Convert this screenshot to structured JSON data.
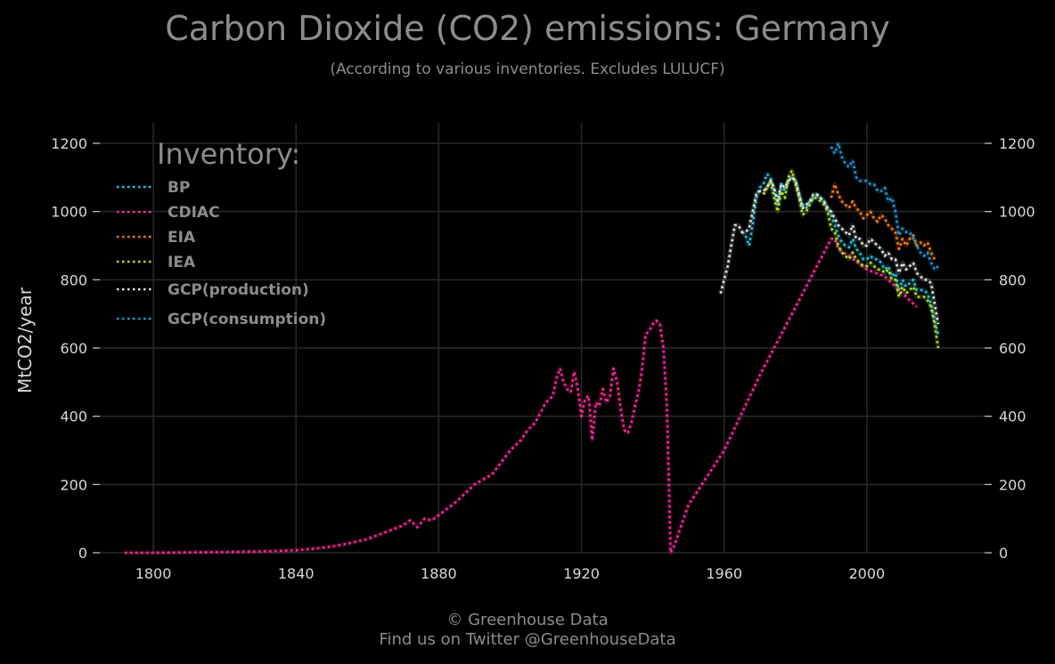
{
  "header": {
    "title": "Carbon Dioxide (CO2) emissions: Germany",
    "subtitle": "(According to various inventories. Excludes LULUCF)"
  },
  "footer": {
    "line1": "© Greenhouse Data",
    "line2": "Find us on Twitter @GreenhouseData"
  },
  "chart_data": {
    "type": "line",
    "ylabel": "MtCO2/year",
    "xlabel": "",
    "xlim": [
      1785,
      2033
    ],
    "ylim": [
      0,
      1260
    ],
    "xticks": [
      1800,
      1840,
      1880,
      1920,
      1960,
      2000
    ],
    "yticks": [
      0,
      200,
      400,
      600,
      800,
      1000,
      1200
    ],
    "grid": true,
    "line_style": "dotted",
    "legend": {
      "title": "Inventory:",
      "placement": "top-left"
    },
    "series": [
      {
        "name": "BP",
        "color": "#1ec8e6",
        "x": [
          1965,
          1966,
          1967,
          1968,
          1969,
          1970,
          1971,
          1972,
          1973,
          1974,
          1975,
          1976,
          1977,
          1978,
          1979,
          1980,
          1981,
          1982,
          1983,
          1984,
          1985,
          1986,
          1987,
          1988,
          1989,
          1990,
          1991,
          1992,
          1993,
          1994,
          1995,
          1996,
          1997,
          1998,
          1999,
          2000,
          2001,
          2002,
          2003,
          2004,
          2005,
          2006,
          2007,
          2008,
          2009,
          2010,
          2011,
          2012,
          2013,
          2014,
          2015,
          2016,
          2017,
          2018,
          2019,
          2020
        ],
        "y": [
          940,
          930,
          900,
          960,
          1040,
          1070,
          1080,
          1110,
          1100,
          1060,
          1020,
          1080,
          1060,
          1090,
          1100,
          1090,
          1050,
          1020,
          1010,
          1030,
          1040,
          1050,
          1040,
          1030,
          1010,
          990,
          960,
          930,
          910,
          900,
          895,
          920,
          890,
          880,
          860,
          860,
          870,
          860,
          860,
          850,
          830,
          840,
          810,
          820,
          770,
          800,
          780,
          790,
          800,
          770,
          770,
          770,
          760,
          730,
          680,
          640
        ]
      },
      {
        "name": "CDIAC",
        "color": "#ff2d96",
        "x": [
          1792,
          1800,
          1810,
          1820,
          1830,
          1840,
          1845,
          1850,
          1855,
          1860,
          1865,
          1870,
          1872,
          1874,
          1876,
          1878,
          1880,
          1885,
          1890,
          1895,
          1900,
          1903,
          1905,
          1907,
          1910,
          1912,
          1913,
          1914,
          1915,
          1916,
          1917,
          1918,
          1919,
          1920,
          1921,
          1922,
          1923,
          1924,
          1925,
          1926,
          1927,
          1928,
          1929,
          1930,
          1931,
          1932,
          1933,
          1934,
          1935,
          1936,
          1937,
          1938,
          1939,
          1940,
          1941,
          1942,
          1943,
          1944,
          1945,
          1946,
          1950,
          1960,
          1970,
          1980,
          1990,
          1991,
          1992,
          1995,
          2000,
          2005,
          2010,
          2012,
          2014
        ],
        "y": [
          0,
          0,
          1,
          2,
          4,
          7,
          12,
          18,
          28,
          40,
          60,
          80,
          95,
          75,
          100,
          95,
          110,
          150,
          200,
          230,
          300,
          330,
          360,
          380,
          440,
          460,
          510,
          540,
          500,
          480,
          470,
          530,
          480,
          400,
          450,
          460,
          330,
          440,
          430,
          480,
          440,
          460,
          540,
          500,
          420,
          360,
          350,
          380,
          430,
          470,
          540,
          640,
          650,
          670,
          680,
          670,
          600,
          420,
          0,
          20,
          140,
          300,
          520,
          720,
          920,
          920,
          890,
          870,
          830,
          810,
          760,
          740,
          720
        ]
      },
      {
        "name": "EIA",
        "color": "#ff7f0e",
        "x": [
          1990,
          1991,
          1992,
          1993,
          1994,
          1995,
          1996,
          1997,
          1998,
          1999,
          2000,
          2001,
          2002,
          2003,
          2004,
          2005,
          2006,
          2007,
          2008,
          2009,
          2010,
          2011,
          2012,
          2013,
          2014,
          2015,
          2016,
          2017,
          2018,
          2019
        ],
        "y": [
          1040,
          1080,
          1050,
          1030,
          1020,
          1010,
          1030,
          1010,
          1000,
          980,
          990,
          1000,
          980,
          970,
          990,
          980,
          960,
          950,
          940,
          890,
          920,
          900,
          920,
          930,
          900,
          910,
          900,
          910,
          880,
          860
        ]
      },
      {
        "name": "IEA",
        "color": "#b5e61d",
        "x": [
          1971,
          1972,
          1973,
          1974,
          1975,
          1976,
          1977,
          1978,
          1979,
          1980,
          1981,
          1982,
          1983,
          1984,
          1985,
          1986,
          1987,
          1988,
          1989,
          1990,
          1991,
          1992,
          1993,
          1994,
          1995,
          1996,
          1997,
          1998,
          1999,
          2000,
          2001,
          2002,
          2003,
          2004,
          2005,
          2006,
          2007,
          2008,
          2009,
          2010,
          2011,
          2012,
          2013,
          2014,
          2015,
          2016,
          2017,
          2018,
          2019,
          2020
        ],
        "y": [
          1050,
          1070,
          1090,
          1040,
          1000,
          1060,
          1040,
          1100,
          1120,
          1080,
          1040,
          990,
          1000,
          1020,
          1040,
          1040,
          1030,
          1020,
          1000,
          950,
          940,
          900,
          880,
          870,
          860,
          880,
          860,
          850,
          840,
          840,
          850,
          840,
          830,
          830,
          820,
          830,
          800,
          800,
          750,
          780,
          760,
          770,
          780,
          750,
          750,
          750,
          740,
          720,
          670,
          600
        ]
      },
      {
        "name": "GCP(production)",
        "color": "#e6e6e6",
        "x": [
          1959,
          1960,
          1961,
          1962,
          1963,
          1964,
          1965,
          1966,
          1967,
          1968,
          1969,
          1970,
          1971,
          1972,
          1973,
          1974,
          1975,
          1976,
          1977,
          1978,
          1979,
          1980,
          1981,
          1982,
          1983,
          1984,
          1985,
          1986,
          1987,
          1988,
          1989,
          1990,
          1991,
          1992,
          1993,
          1994,
          1995,
          1996,
          1997,
          1998,
          1999,
          2000,
          2001,
          2002,
          2003,
          2004,
          2005,
          2006,
          2007,
          2008,
          2009,
          2010,
          2011,
          2012,
          2013,
          2014,
          2015,
          2016,
          2017,
          2018,
          2019,
          2020
        ],
        "y": [
          760,
          800,
          840,
          900,
          960,
          960,
          940,
          940,
          950,
          1000,
          1050,
          1060,
          1060,
          1070,
          1090,
          1070,
          1030,
          1080,
          1070,
          1090,
          1100,
          1090,
          1050,
          1010,
          1020,
          1030,
          1050,
          1050,
          1040,
          1030,
          1010,
          1000,
          980,
          960,
          950,
          940,
          930,
          960,
          920,
          920,
          900,
          900,
          920,
          910,
          900,
          890,
          870,
          880,
          860,
          860,
          820,
          850,
          830,
          840,
          850,
          820,
          810,
          800,
          800,
          790,
          730,
          670
        ]
      },
      {
        "name": "GCP(consumption)",
        "color": "#1f9bd6",
        "x": [
          1990,
          1991,
          1992,
          1993,
          1994,
          1995,
          1996,
          1997,
          1998,
          1999,
          2000,
          2001,
          2002,
          2003,
          2004,
          2005,
          2006,
          2007,
          2008,
          2009,
          2010,
          2011,
          2012,
          2013,
          2014,
          2015,
          2016,
          2017,
          2018,
          2019,
          2020
        ],
        "y": [
          1190,
          1170,
          1200,
          1160,
          1140,
          1130,
          1150,
          1100,
          1090,
          1090,
          1090,
          1080,
          1080,
          1060,
          1060,
          1070,
          1030,
          1040,
          1000,
          930,
          950,
          940,
          940,
          920,
          900,
          880,
          870,
          880,
          850,
          830,
          840
        ]
      }
    ]
  }
}
